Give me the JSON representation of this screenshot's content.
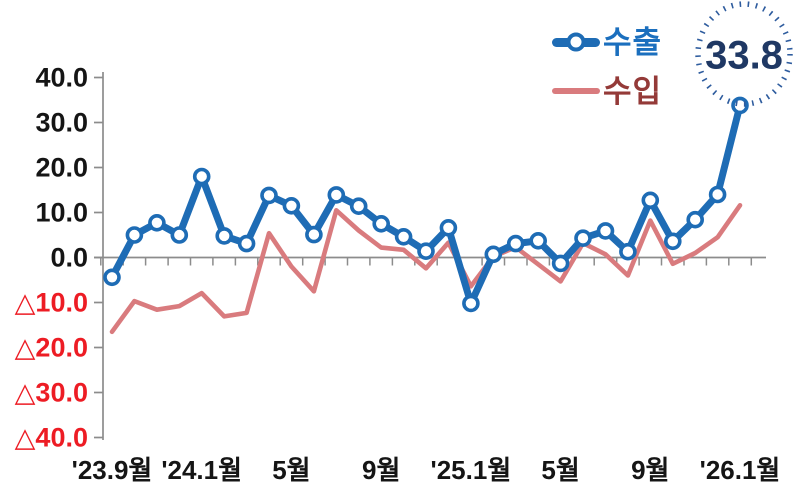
{
  "chart_data": {
    "type": "line",
    "months": [
      "2023-09",
      "2023-10",
      "2023-11",
      "2023-12",
      "2024-01",
      "2024-02",
      "2024-03",
      "2024-04",
      "2024-05",
      "2024-06",
      "2024-07",
      "2024-08",
      "2024-09",
      "2024-10",
      "2024-11",
      "2024-12",
      "2025-01",
      "2025-02",
      "2025-03",
      "2025-04",
      "2025-05",
      "2025-06",
      "2025-07",
      "2025-08",
      "2025-09",
      "2025-10",
      "2025-11",
      "2025-12",
      "2026-01"
    ],
    "series": [
      {
        "name": "수출",
        "style": "line-with-circle-markers",
        "color": "#1E6CB5",
        "label_color": "#1B6FBE",
        "values": [
          -4.4,
          5.0,
          7.7,
          5.0,
          18.0,
          4.8,
          3.1,
          13.8,
          11.5,
          5.1,
          13.9,
          11.4,
          7.5,
          4.6,
          1.4,
          6.6,
          -10.2,
          0.7,
          3.1,
          3.7,
          -1.3,
          4.3,
          5.9,
          1.3,
          12.7,
          3.6,
          8.4,
          14.0,
          33.8
        ]
      },
      {
        "name": "수입",
        "style": "plain-line",
        "color": "#D97B7E",
        "label_color": "#943A38",
        "values": [
          -16.5,
          -9.7,
          -11.6,
          -10.8,
          -7.9,
          -13.1,
          -12.3,
          5.4,
          -2.0,
          -7.5,
          10.5,
          6.0,
          2.2,
          1.7,
          -2.4,
          3.3,
          -6.4,
          0.2,
          2.3,
          -1.5,
          -5.3,
          3.2,
          0.7,
          -4.0,
          8.2,
          -1.4,
          1.0,
          4.5,
          11.6
        ]
      }
    ],
    "x_axis": {
      "label_color": "#151515",
      "ticks": [
        {
          "index": 0,
          "label": "'23.9월"
        },
        {
          "index": 4,
          "label": "'24.1월"
        },
        {
          "index": 8,
          "label": "5월"
        },
        {
          "index": 12,
          "label": "9월"
        },
        {
          "index": 16,
          "label": "'25.1월"
        },
        {
          "index": 20,
          "label": "5월"
        },
        {
          "index": 24,
          "label": "9월"
        },
        {
          "index": 28,
          "label": "'26.1월"
        }
      ]
    },
    "y_axis": {
      "range": [
        -40,
        40
      ],
      "ticks": [
        {
          "value": 40,
          "label": "40.0",
          "color": "#151515"
        },
        {
          "value": 30,
          "label": "30.0",
          "color": "#151515"
        },
        {
          "value": 20,
          "label": "20.0",
          "color": "#151515"
        },
        {
          "value": 10,
          "label": "10.0",
          "color": "#151515"
        },
        {
          "value": 0,
          "label": "0.0",
          "color": "#151515"
        },
        {
          "value": -10,
          "label": "△10.0",
          "color": "#ED1C24"
        },
        {
          "value": -20,
          "label": "△20.0",
          "color": "#ED1C24"
        },
        {
          "value": -30,
          "label": "△30.0",
          "color": "#ED1C24"
        },
        {
          "value": -40,
          "label": "△40.0",
          "color": "#ED1C24"
        }
      ]
    },
    "axis_color": "#8C8C8C",
    "grid": false,
    "legend_position": "top-right",
    "annotation": {
      "label": "33.8",
      "series": "수출",
      "month": "2026-01",
      "x_index": 28,
      "text_color": "#1F3864",
      "circle_color": "#2E5C9E"
    }
  }
}
